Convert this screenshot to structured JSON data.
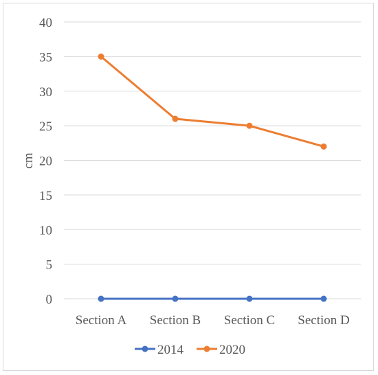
{
  "chart_data": {
    "type": "line",
    "categories": [
      "Section A",
      "Section B",
      "Section C",
      "Section D"
    ],
    "series": [
      {
        "name": "2014",
        "values": [
          0,
          0,
          0,
          0
        ],
        "color": "#4472c4"
      },
      {
        "name": "2020",
        "values": [
          35,
          26,
          25,
          22
        ],
        "color": "#ed7d31"
      }
    ],
    "xlabel": "",
    "ylabel": "cm",
    "ylim": [
      0,
      40
    ],
    "yticks": [
      0,
      5,
      10,
      15,
      20,
      25,
      30,
      35,
      40
    ],
    "grid": true,
    "legend_position": "bottom",
    "gridline_color": "#d9d9d9"
  }
}
